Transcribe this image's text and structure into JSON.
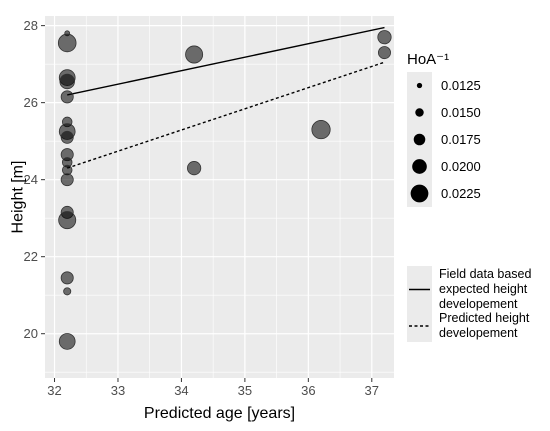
{
  "chart_data": {
    "type": "scatter",
    "xlabel": "Predicted age [years]",
    "ylabel": "Height [m]",
    "xlim": [
      31.85,
      37.35
    ],
    "ylim": [
      18.85,
      28.25
    ],
    "x_ticks": [
      32,
      33,
      34,
      35,
      36,
      37
    ],
    "y_ticks": [
      20,
      22,
      24,
      26,
      28
    ],
    "grid": true,
    "legend_position": "right",
    "size_legend": {
      "title": "HoA⁻¹",
      "breaks": [
        0.0125,
        0.015,
        0.0175,
        0.02,
        0.0225
      ],
      "labels": [
        "0.0125",
        "0.0150",
        "0.0175",
        "0.0200",
        "0.0225"
      ]
    },
    "line_legend": {
      "items": [
        {
          "label_lines": [
            "Field data based",
            "expected height",
            "developement"
          ],
          "style": "solid"
        },
        {
          "label_lines": [
            "Predicted height",
            "developement"
          ],
          "style": "dotted"
        }
      ]
    },
    "points": [
      {
        "x": 32.2,
        "y": 27.8,
        "s": 0.01
      },
      {
        "x": 32.2,
        "y": 27.55,
        "s": 0.0225
      },
      {
        "x": 32.2,
        "y": 26.65,
        "s": 0.021
      },
      {
        "x": 32.2,
        "y": 26.55,
        "s": 0.02
      },
      {
        "x": 32.2,
        "y": 26.15,
        "s": 0.018
      },
      {
        "x": 32.2,
        "y": 25.5,
        "s": 0.016
      },
      {
        "x": 32.2,
        "y": 25.25,
        "s": 0.021
      },
      {
        "x": 32.2,
        "y": 25.1,
        "s": 0.018
      },
      {
        "x": 32.2,
        "y": 24.65,
        "s": 0.018
      },
      {
        "x": 32.2,
        "y": 24.45,
        "s": 0.016
      },
      {
        "x": 32.2,
        "y": 24.25,
        "s": 0.016
      },
      {
        "x": 32.2,
        "y": 24.0,
        "s": 0.018
      },
      {
        "x": 32.2,
        "y": 23.15,
        "s": 0.018
      },
      {
        "x": 32.2,
        "y": 22.95,
        "s": 0.022
      },
      {
        "x": 32.2,
        "y": 21.45,
        "s": 0.018
      },
      {
        "x": 32.2,
        "y": 21.1,
        "s": 0.014
      },
      {
        "x": 32.2,
        "y": 19.8,
        "s": 0.021
      },
      {
        "x": 34.2,
        "y": 27.25,
        "s": 0.022
      },
      {
        "x": 34.2,
        "y": 24.3,
        "s": 0.019
      },
      {
        "x": 36.2,
        "y": 25.3,
        "s": 0.023
      },
      {
        "x": 37.2,
        "y": 27.7,
        "s": 0.019
      },
      {
        "x": 37.2,
        "y": 27.3,
        "s": 0.018
      }
    ],
    "lines": [
      {
        "name": "Field data based expected height developement",
        "style": "solid",
        "x": [
          32.2,
          37.2
        ],
        "y": [
          26.2,
          27.95
        ]
      },
      {
        "name": "Predicted height developement",
        "style": "dotted",
        "x": [
          32.2,
          37.2
        ],
        "y": [
          24.3,
          27.05
        ]
      }
    ],
    "colors": {
      "panel": "#ebebeb",
      "grid_major": "#ffffff",
      "point_fill": "#000000",
      "point_alpha": 0.55,
      "point_stroke": "#333333",
      "line": "#000000"
    }
  }
}
